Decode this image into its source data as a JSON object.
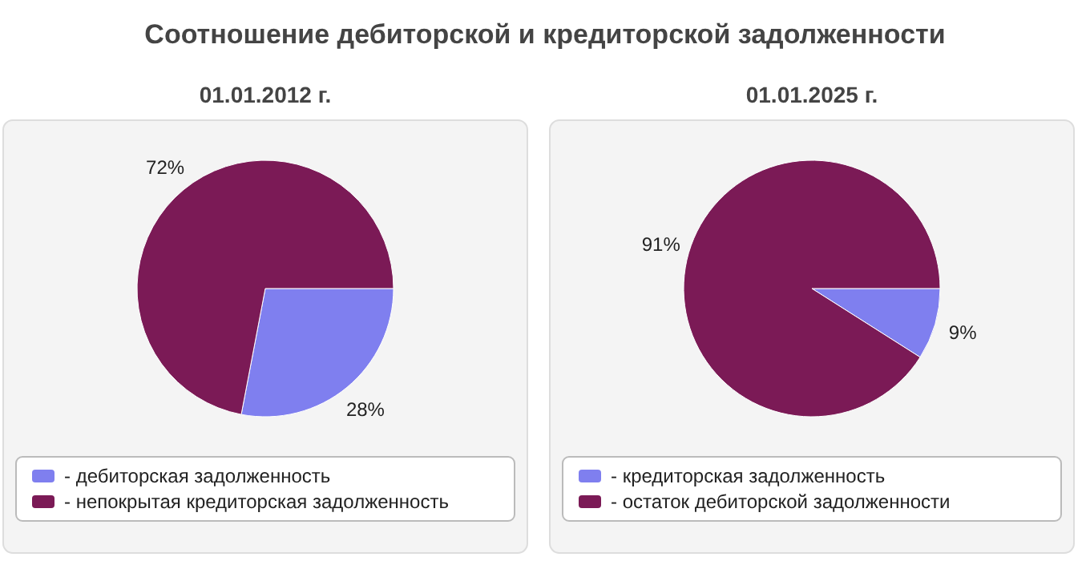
{
  "chart_data": [
    {
      "type": "other",
      "title": "Соотношение дебиторской и кредиторской задолженности"
    },
    {
      "type": "pie",
      "title": "01.01.2012 г.",
      "categories": [
        "- дебиторская задолженность",
        "- непокрытая кредиторская задолженность"
      ],
      "values": [
        28,
        72
      ],
      "colors": [
        "#7f7fef",
        "#7b1a56"
      ],
      "value_labels": [
        "28%",
        "72%"
      ],
      "legend": "bottom"
    },
    {
      "type": "pie",
      "title": "01.01.2025 г.",
      "categories": [
        "- кредиторская задолженность",
        "- остаток дебиторской задолженности"
      ],
      "values": [
        9,
        91
      ],
      "colors": [
        "#7f7fef",
        "#7b1a56"
      ],
      "value_labels": [
        "9%",
        "91%"
      ],
      "legend": "bottom"
    }
  ]
}
